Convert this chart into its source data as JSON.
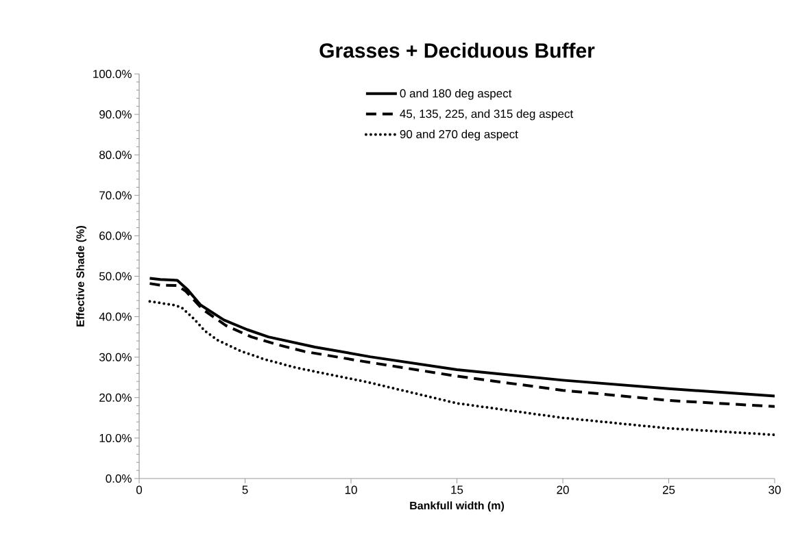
{
  "chart_data": {
    "type": "line",
    "title": "Grasses + Deciduous Buffer",
    "xlabel": "Bankfull width (m)",
    "ylabel": "Effective Shade (%)",
    "xlim": [
      0,
      30
    ],
    "xticks": [
      0,
      5,
      10,
      15,
      20,
      25,
      30
    ],
    "ylim": [
      0,
      100
    ],
    "yticks": [
      {
        "value": 0,
        "label": "0.0%"
      },
      {
        "value": 10,
        "label": "10.0%"
      },
      {
        "value": 20,
        "label": "20.0%"
      },
      {
        "value": 30,
        "label": "30.0%"
      },
      {
        "value": 40,
        "label": "40.0%"
      },
      {
        "value": 50,
        "label": "50.0%"
      },
      {
        "value": 60,
        "label": "60.0%"
      },
      {
        "value": 70,
        "label": "70.0%"
      },
      {
        "value": 80,
        "label": "80.0%"
      },
      {
        "value": 90,
        "label": "90.0%"
      },
      {
        "value": 100,
        "label": "100.0%"
      }
    ],
    "legend": "top",
    "marker": "none",
    "grid": false,
    "series": [
      {
        "name": "0 and 180 deg aspect",
        "color": "#000000",
        "line_style": "solid",
        "x": [
          0.5,
          1.0,
          1.8,
          2.3,
          2.9,
          4.0,
          5.1,
          6.1,
          8.3,
          10.9,
          15,
          20,
          25,
          30
        ],
        "values": [
          49.5,
          49.2,
          49.0,
          46.6,
          42.9,
          39.2,
          36.8,
          35.0,
          32.5,
          30.1,
          26.9,
          24.3,
          22.2,
          20.4
        ]
      },
      {
        "name": "45, 135, 225, and 315 deg aspect",
        "color": "#000000",
        "line_style": "dashed",
        "x": [
          0.5,
          1.0,
          1.8,
          2.2,
          3.0,
          4.1,
          5.3,
          6.6,
          7.8,
          10.4,
          15,
          20,
          25,
          30
        ],
        "values": [
          48.2,
          47.8,
          47.7,
          46.3,
          41.8,
          37.8,
          35.0,
          33.0,
          31.4,
          29.1,
          25.3,
          21.8,
          19.3,
          17.8
        ]
      },
      {
        "name": "90 and 270 deg aspect",
        "color": "#000000",
        "line_style": "dotted",
        "x": [
          0.5,
          1.6,
          2.0,
          2.6,
          3.1,
          3.7,
          4.8,
          5.9,
          7.4,
          8.9,
          10.8,
          15,
          20,
          25,
          30
        ],
        "values": [
          43.8,
          42.9,
          42.3,
          39.4,
          36.5,
          34.2,
          31.5,
          29.5,
          27.4,
          25.8,
          23.8,
          18.6,
          15.0,
          12.4,
          10.8
        ]
      }
    ]
  }
}
